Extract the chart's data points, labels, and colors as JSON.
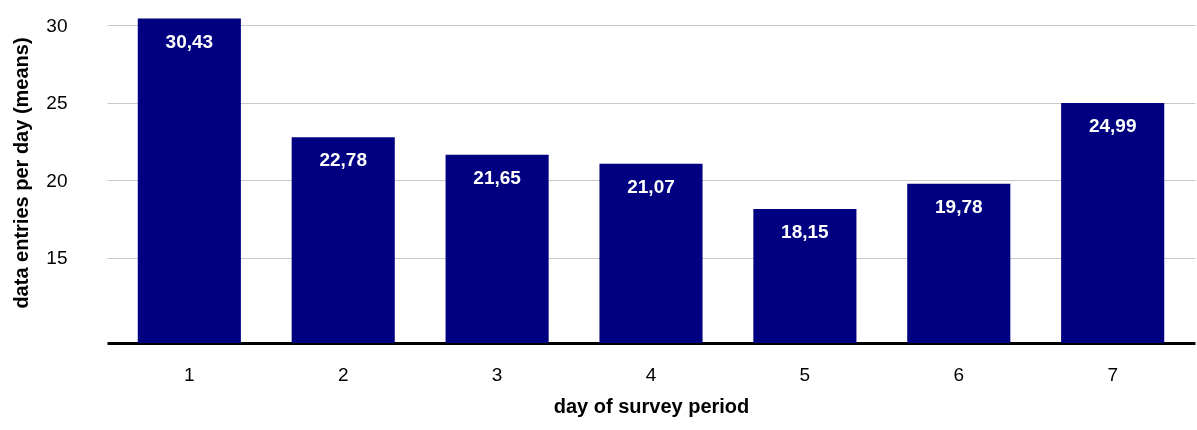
{
  "chart_data": {
    "type": "bar",
    "xlabel": "day of survey period",
    "ylabel": "data entries per day (means)",
    "categories": [
      "1",
      "2",
      "3",
      "4",
      "5",
      "6",
      "7"
    ],
    "values": [
      30.43,
      22.78,
      21.65,
      21.07,
      18.15,
      19.78,
      24.99
    ],
    "value_labels": [
      "30,43",
      "22,78",
      "21,65",
      "21,07",
      "18,15",
      "19,78",
      "24,99"
    ],
    "color": "#000080",
    "ylim": [
      9.5,
      31.5
    ],
    "yticks": [
      15,
      20,
      25,
      30
    ],
    "grid": "y"
  }
}
